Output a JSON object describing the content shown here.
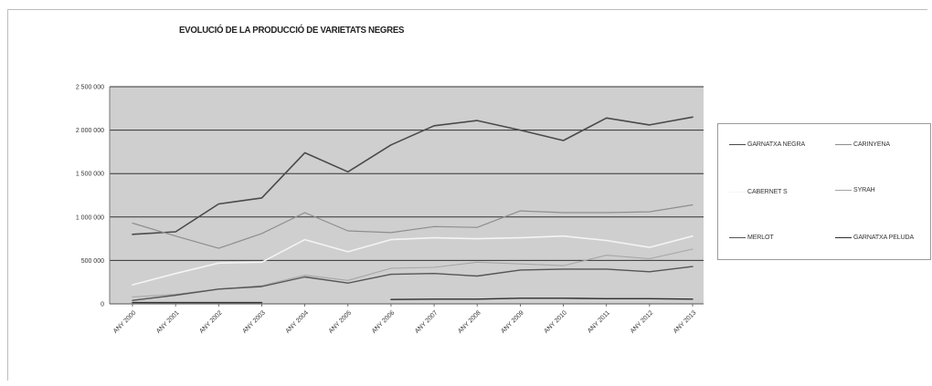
{
  "chart_data": {
    "type": "line",
    "title": "EVOLUCIÓ DE LA PRODUCCIÓ DE VARIETATS NEGRES",
    "xlabel": "",
    "ylabel": "",
    "categories": [
      "ANY 2000",
      "ANY 2001",
      "ANY 2002",
      "ANY 2003",
      "ANY 2004",
      "ANY 2005",
      "ANY 2006",
      "ANY 2007",
      "ANY 2008",
      "ANY 2009",
      "ANY 2010",
      "ANY 2011",
      "ANY 2012",
      "ANY 2013"
    ],
    "ylim": [
      0,
      2500000
    ],
    "yticks": [
      0,
      500000,
      1000000,
      1500000,
      2000000,
      2500000
    ],
    "ytick_labels": [
      "0",
      "500 000",
      "1 000 000",
      "1 500 000",
      "2 000 000",
      "2 500 000"
    ],
    "grid": true,
    "legend_position": "right",
    "plot_background": "#cfcfcf",
    "series": [
      {
        "name": "GARNATXA NEGRA",
        "color": "#4a4a4a",
        "width": 1.6,
        "values": [
          800000,
          830000,
          1150000,
          1220000,
          1740000,
          1520000,
          1830000,
          2050000,
          2110000,
          2000000,
          1880000,
          2140000,
          2060000,
          2150000
        ]
      },
      {
        "name": "CARINYENA",
        "color": "#8e8e8e",
        "width": 1.2,
        "values": [
          930000,
          780000,
          640000,
          810000,
          1050000,
          840000,
          820000,
          890000,
          880000,
          1070000,
          1050000,
          1050000,
          1060000,
          1140000
        ]
      },
      {
        "name": "CABERNET S",
        "color": "#f4f4f4",
        "width": 1.6,
        "values": [
          220000,
          350000,
          470000,
          480000,
          740000,
          600000,
          740000,
          760000,
          750000,
          760000,
          780000,
          730000,
          650000,
          780000
        ]
      },
      {
        "name": "SYRAH",
        "color": "#a6a6a6",
        "width": 1.1,
        "values": [
          80000,
          110000,
          170000,
          210000,
          330000,
          270000,
          410000,
          420000,
          480000,
          460000,
          440000,
          560000,
          520000,
          630000
        ]
      },
      {
        "name": "MERLOT",
        "color": "#555555",
        "width": 1.4,
        "values": [
          40000,
          100000,
          170000,
          200000,
          310000,
          240000,
          340000,
          350000,
          320000,
          390000,
          400000,
          400000,
          370000,
          430000
        ]
      },
      {
        "name": "GARNATXA PELUDA",
        "color": "#2e2e2e",
        "width": 1.4,
        "values": [
          null,
          null,
          null,
          null,
          null,
          null,
          50000,
          55000,
          55000,
          65000,
          65000,
          60000,
          60000,
          55000
        ]
      },
      {
        "name": "",
        "color": "#333333",
        "width": 1.4,
        "values": [
          15000,
          15000,
          15000,
          15000,
          null,
          null,
          null,
          null,
          null,
          null,
          null,
          null,
          null,
          null
        ]
      }
    ],
    "legend": [
      {
        "label": "GARNATXA NEGRA",
        "series": 0
      },
      {
        "label": "CARINYENA",
        "series": 1
      },
      {
        "label": "CABERNET S",
        "series": 2
      },
      {
        "label": "SYRAH",
        "series": 3
      },
      {
        "label": "MERLOT",
        "series": 4
      },
      {
        "label": "GARNATXA PELUDA",
        "series": 5
      }
    ]
  }
}
